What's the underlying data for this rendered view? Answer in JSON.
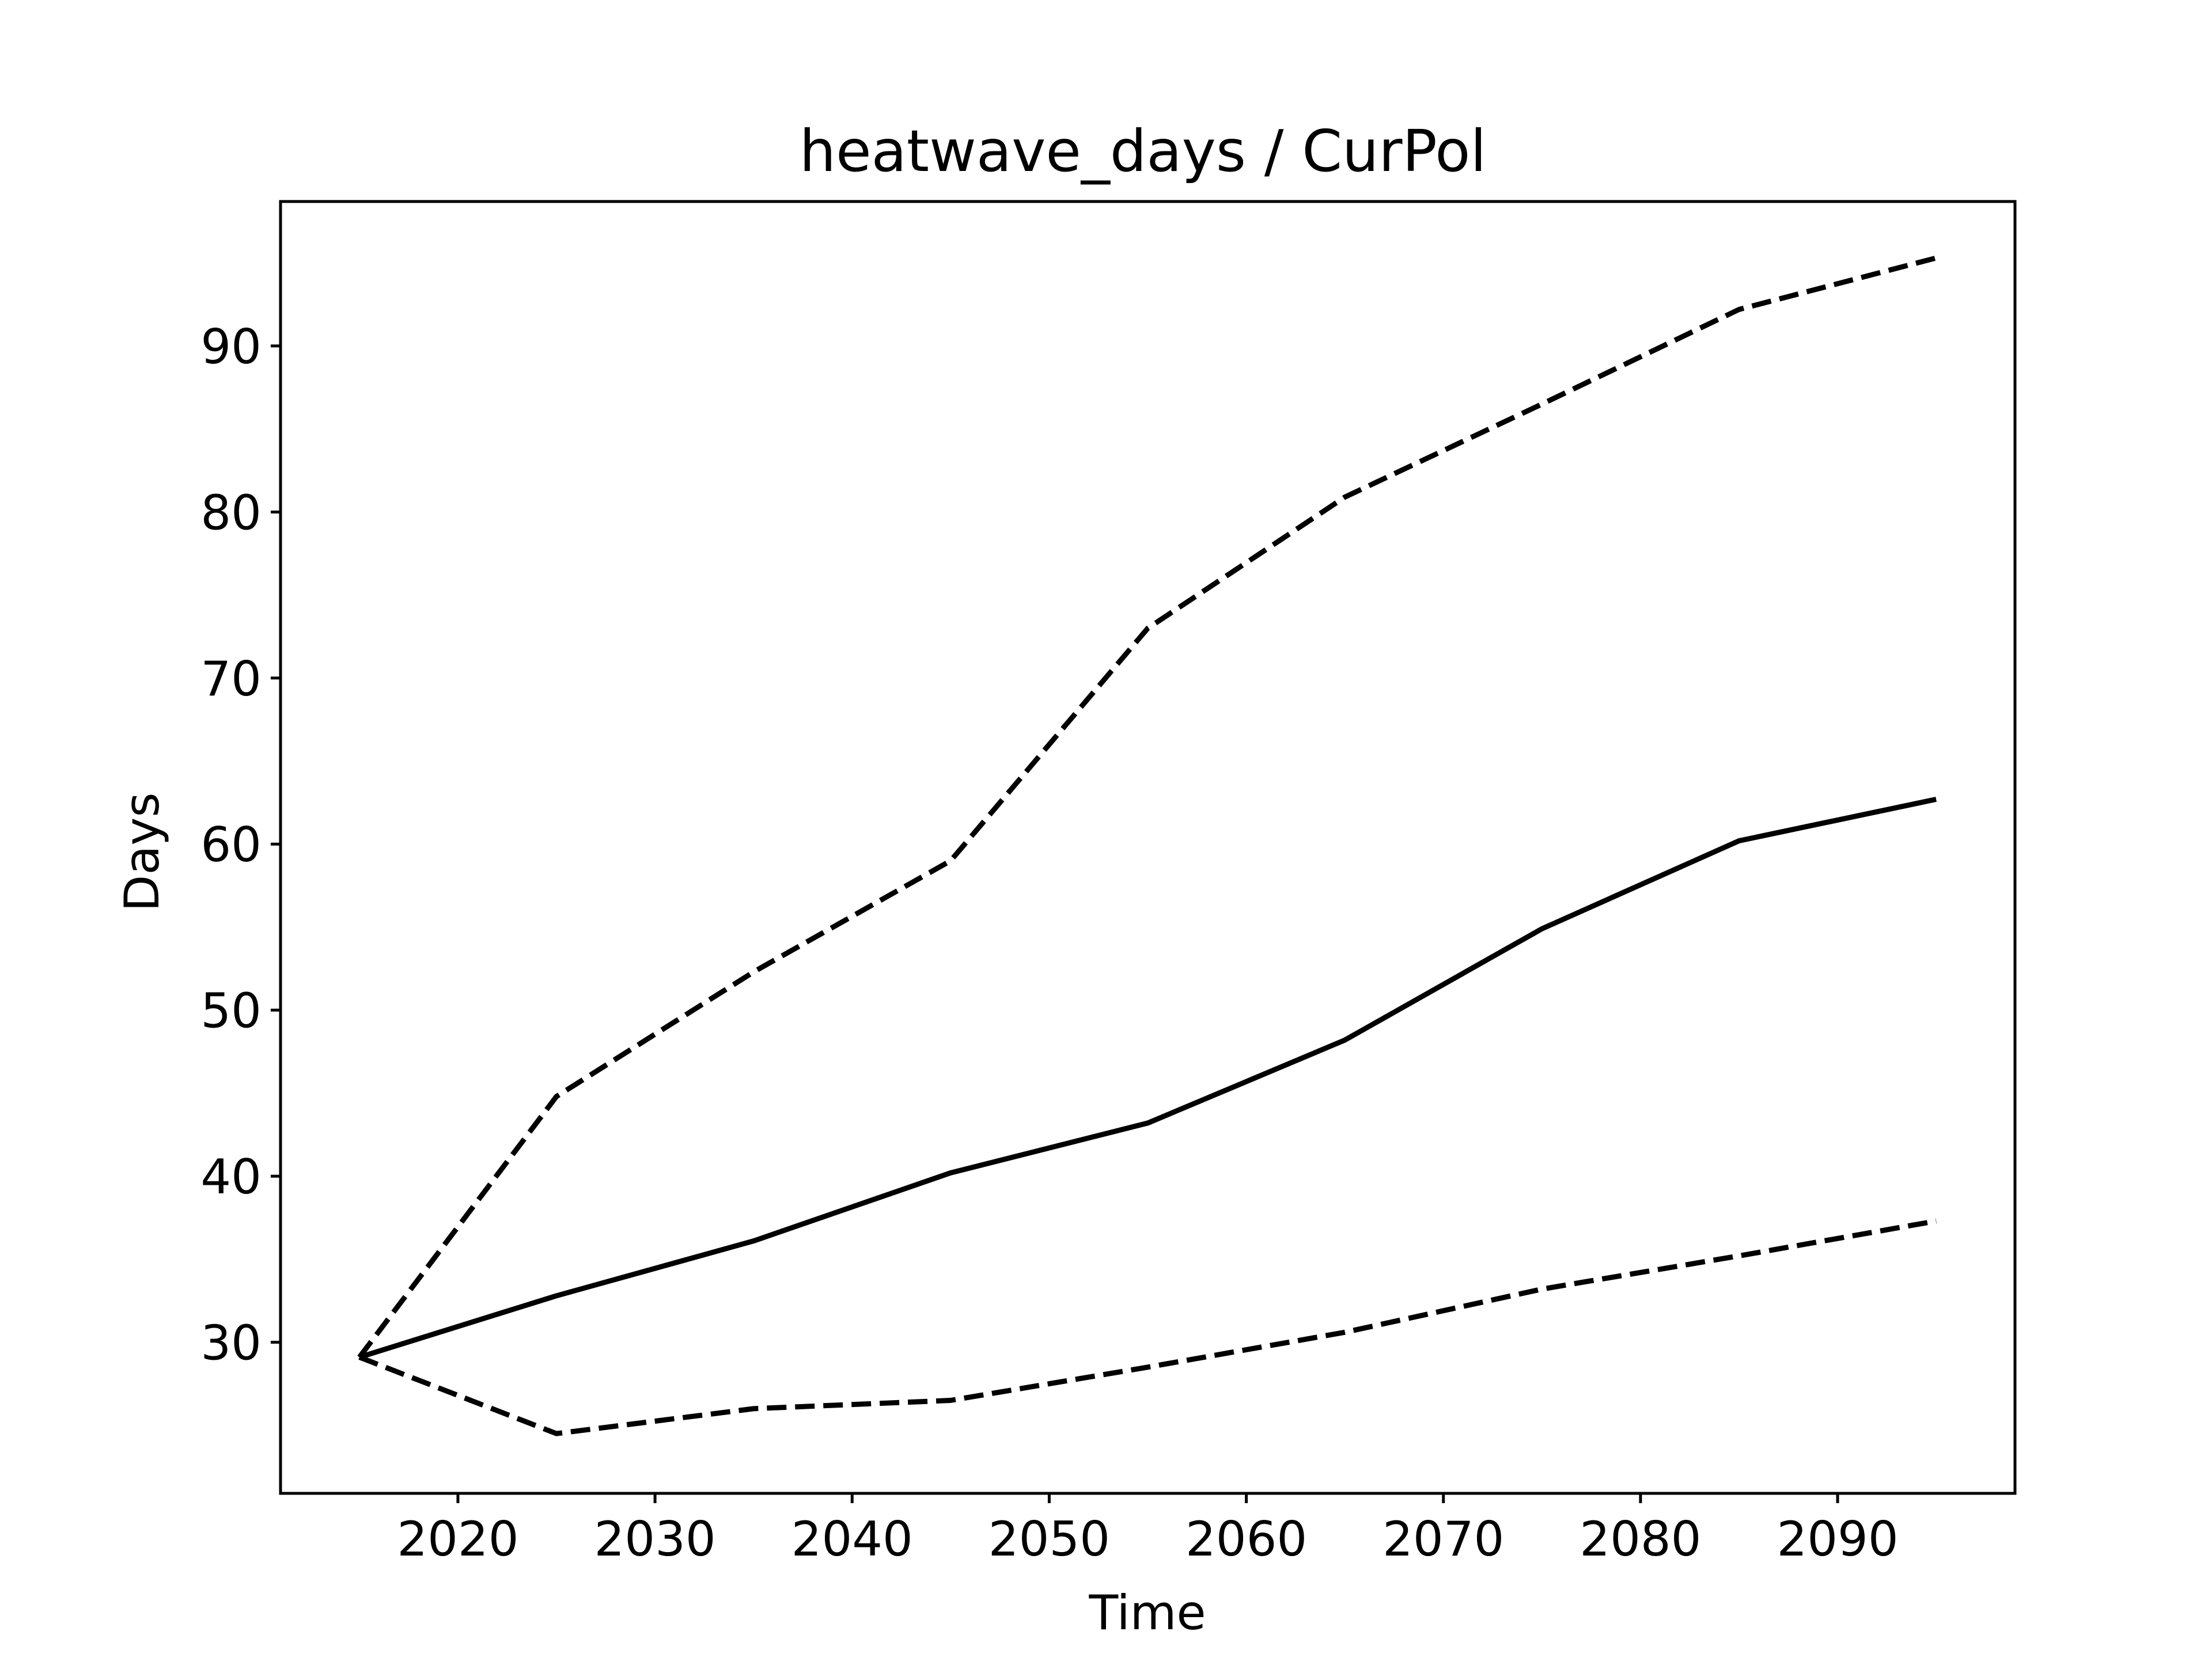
{
  "chart_data": {
    "type": "line",
    "title": "heatwave_days / CurPol",
    "xlabel": "Time",
    "ylabel": "Days",
    "xlim": [
      2011,
      2099
    ],
    "ylim": [
      20.9,
      98.7
    ],
    "xticks": [
      2020,
      2030,
      2040,
      2050,
      2060,
      2070,
      2080,
      2090
    ],
    "yticks": [
      30,
      40,
      50,
      60,
      70,
      80,
      90
    ],
    "x": [
      2015,
      2025,
      2035,
      2045,
      2055,
      2065,
      2075,
      2085,
      2095
    ],
    "series": [
      {
        "style": "solid",
        "color": "#000000",
        "values": [
          29.1,
          32.8,
          36.1,
          40.2,
          43.2,
          48.2,
          54.9,
          60.2,
          62.7
        ]
      },
      {
        "style": "dashed",
        "color": "#000000",
        "values": [
          29.1,
          44.8,
          52.3,
          59.0,
          73.0,
          80.9,
          86.5,
          92.2,
          95.3
        ]
      },
      {
        "style": "dashed",
        "color": "#000000",
        "values": [
          29.1,
          24.5,
          26.0,
          26.5,
          28.5,
          30.6,
          33.2,
          35.2,
          37.3
        ]
      }
    ]
  }
}
